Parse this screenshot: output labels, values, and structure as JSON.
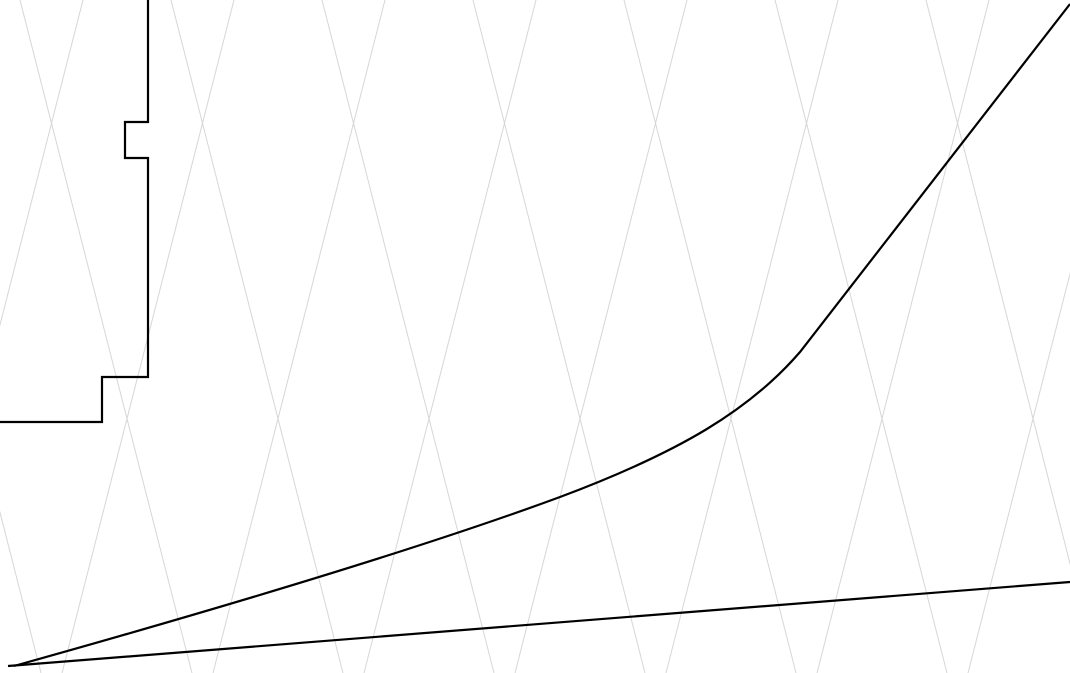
{
  "colors": {
    "background": "#ffffff",
    "grid": "#d6d6d6",
    "ink": "#000000"
  },
  "drawing": {
    "grid": "diagonal-lattice",
    "elements": [
      "stepped-outline",
      "rising-curve",
      "low-slope-line"
    ]
  }
}
